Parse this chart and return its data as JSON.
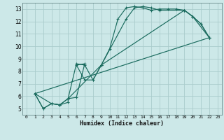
{
  "xlabel": "Humidex (Indice chaleur)",
  "bg_color": "#cce8e8",
  "grid_color": "#aacccc",
  "line_color": "#1a6b5e",
  "xlim": [
    -0.5,
    23.5
  ],
  "ylim": [
    4.5,
    13.5
  ],
  "xticks": [
    0,
    1,
    2,
    3,
    4,
    5,
    6,
    7,
    8,
    9,
    10,
    11,
    12,
    13,
    14,
    15,
    16,
    17,
    18,
    19,
    20,
    21,
    22,
    23
  ],
  "yticks": [
    5,
    6,
    7,
    8,
    9,
    10,
    11,
    12,
    13
  ],
  "lines": [
    {
      "x": [
        1,
        2,
        3,
        4,
        5,
        6,
        7,
        8,
        9,
        10,
        11,
        12,
        13,
        14,
        15,
        16,
        17,
        18,
        19,
        20,
        21,
        22
      ],
      "y": [
        6.2,
        5.0,
        5.4,
        5.3,
        5.8,
        8.6,
        8.5,
        7.3,
        8.5,
        9.8,
        12.2,
        13.1,
        13.2,
        13.1,
        12.9,
        13.0,
        13.0,
        13.0,
        12.9,
        12.4,
        11.8,
        10.7
      ]
    },
    {
      "x": [
        1,
        2,
        3,
        4,
        5,
        5,
        6,
        7,
        6,
        7,
        8,
        9,
        12,
        13,
        14,
        15,
        16,
        19,
        20,
        21,
        22
      ],
      "y": [
        6.2,
        5.0,
        5.4,
        5.3,
        5.5,
        5.8,
        5.9,
        8.6,
        8.5,
        7.3,
        7.3,
        8.5,
        12.2,
        13.1,
        13.2,
        13.1,
        12.9,
        12.9,
        12.4,
        11.8,
        10.7
      ]
    },
    {
      "x": [
        1,
        3,
        4,
        5,
        9,
        19,
        20,
        22
      ],
      "y": [
        6.2,
        5.4,
        5.3,
        5.8,
        8.5,
        12.9,
        12.4,
        10.7
      ]
    },
    {
      "x": [
        1,
        22
      ],
      "y": [
        6.2,
        10.7
      ]
    }
  ]
}
